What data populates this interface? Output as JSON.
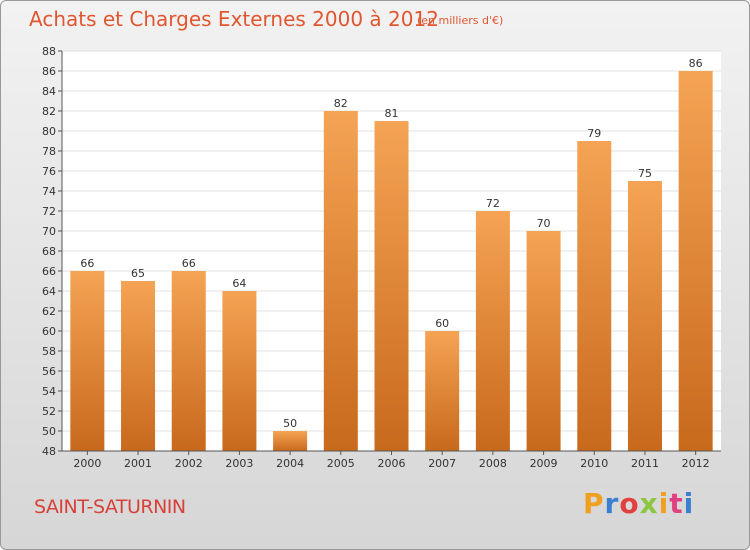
{
  "header": {
    "title": "Achats et Charges Externes 2000 à 2012",
    "subtitle": "(en milliers d'€)"
  },
  "footer": {
    "commune": "SAINT-SATURNIN",
    "logo_text": "Proxiti",
    "logo_colors": [
      "#f0a020",
      "#3a7fd0",
      "#e04040",
      "#8cc63f",
      "#f0a020",
      "#e04080",
      "#3a7fd0"
    ]
  },
  "colors": {
    "bar_light": "#f5a354",
    "bar_dark": "#c8691c",
    "axis": "#555555",
    "grid": "#e0e0e0",
    "plot_bg": "#ffffff"
  },
  "chart_data": {
    "type": "bar",
    "title": "Achats et Charges Externes 2000 à 2012",
    "xlabel": "",
    "ylabel": "",
    "ylim": [
      48,
      88
    ],
    "ytick_step": 2,
    "grid": true,
    "categories": [
      "2000",
      "2001",
      "2002",
      "2003",
      "2004",
      "2005",
      "2006",
      "2007",
      "2008",
      "2009",
      "2010",
      "2011",
      "2012"
    ],
    "values": [
      66,
      65,
      66,
      64,
      50,
      82,
      81,
      60,
      72,
      70,
      79,
      75,
      86
    ],
    "data_labels": [
      "66",
      "65",
      "66",
      "64",
      "50",
      "82",
      "81",
      "60",
      "72",
      "70",
      "79",
      "75",
      "86"
    ]
  }
}
